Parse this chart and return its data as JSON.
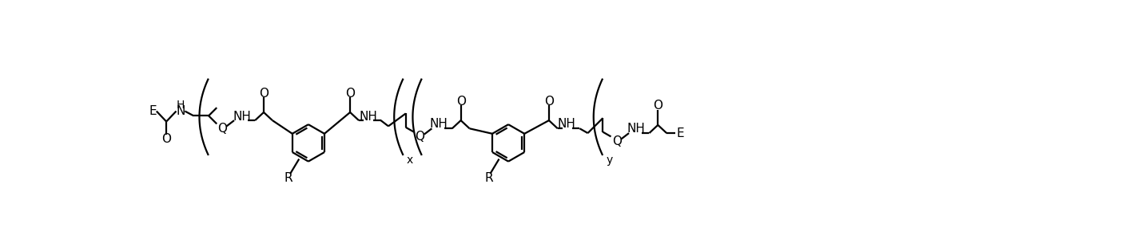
{
  "background": "#ffffff",
  "line_color": "#000000",
  "line_width": 1.6,
  "font_size": 11,
  "fig_width": 14.04,
  "fig_height": 3.05,
  "dpi": 100,
  "xlim": [
    0,
    150
  ],
  "ylim": [
    0,
    32
  ]
}
